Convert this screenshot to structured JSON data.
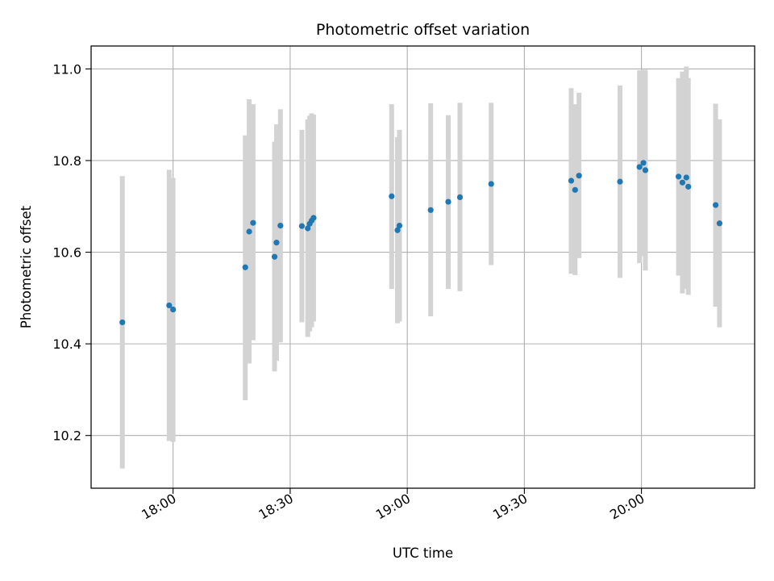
{
  "chart_data": {
    "type": "scatter",
    "title": "Photometric offset variation",
    "xlabel": "UTC time",
    "ylabel": "Photometric offset",
    "x_ticks": [
      "18:00",
      "18:30",
      "19:00",
      "19:30",
      "20:00"
    ],
    "y_ticks": [
      "10.2",
      "10.4",
      "10.6",
      "10.8",
      "11.0"
    ],
    "xlim": [
      "17:39",
      "20:29"
    ],
    "ylim": [
      10.085,
      11.05
    ],
    "grid": true,
    "colors": {
      "points": "#1f77b4",
      "error_bars": "#d3d3d3",
      "grid": "#b0b0b0",
      "axes": "#000000"
    },
    "points": [
      {
        "time": "17:47:00",
        "y": 10.447,
        "ylow": 10.128,
        "yhigh": 10.766
      },
      {
        "time": "17:59:00",
        "y": 10.484,
        "ylow": 10.188,
        "yhigh": 10.78
      },
      {
        "time": "18:00:00",
        "y": 10.475,
        "ylow": 10.186,
        "yhigh": 10.762
      },
      {
        "time": "18:18:30",
        "y": 10.567,
        "ylow": 10.277,
        "yhigh": 10.855
      },
      {
        "time": "18:19:30",
        "y": 10.645,
        "ylow": 10.357,
        "yhigh": 10.934
      },
      {
        "time": "18:20:30",
        "y": 10.664,
        "ylow": 10.408,
        "yhigh": 10.923
      },
      {
        "time": "18:26:00",
        "y": 10.59,
        "ylow": 10.34,
        "yhigh": 10.841
      },
      {
        "time": "18:26:30",
        "y": 10.621,
        "ylow": 10.363,
        "yhigh": 10.879
      },
      {
        "time": "18:27:30",
        "y": 10.658,
        "ylow": 10.403,
        "yhigh": 10.912
      },
      {
        "time": "18:33:00",
        "y": 10.657,
        "ylow": 10.447,
        "yhigh": 10.867
      },
      {
        "time": "18:34:30",
        "y": 10.652,
        "ylow": 10.415,
        "yhigh": 10.89
      },
      {
        "time": "18:35:00",
        "y": 10.662,
        "ylow": 10.427,
        "yhigh": 10.898
      },
      {
        "time": "18:35:30",
        "y": 10.669,
        "ylow": 10.436,
        "yhigh": 10.903
      },
      {
        "time": "18:36:00",
        "y": 10.675,
        "ylow": 10.449,
        "yhigh": 10.9
      },
      {
        "time": "18:56:00",
        "y": 10.722,
        "ylow": 10.52,
        "yhigh": 10.923
      },
      {
        "time": "18:57:30",
        "y": 10.648,
        "ylow": 10.445,
        "yhigh": 10.851
      },
      {
        "time": "18:58:00",
        "y": 10.658,
        "ylow": 10.449,
        "yhigh": 10.867
      },
      {
        "time": "19:06:00",
        "y": 10.692,
        "ylow": 10.46,
        "yhigh": 10.925
      },
      {
        "time": "19:10:30",
        "y": 10.71,
        "ylow": 10.52,
        "yhigh": 10.899
      },
      {
        "time": "19:13:30",
        "y": 10.72,
        "ylow": 10.515,
        "yhigh": 10.926
      },
      {
        "time": "19:21:30",
        "y": 10.749,
        "ylow": 10.572,
        "yhigh": 10.926
      },
      {
        "time": "19:42:00",
        "y": 10.756,
        "ylow": 10.553,
        "yhigh": 10.958
      },
      {
        "time": "19:43:00",
        "y": 10.736,
        "ylow": 10.55,
        "yhigh": 10.923
      },
      {
        "time": "19:44:00",
        "y": 10.767,
        "ylow": 10.587,
        "yhigh": 10.948
      },
      {
        "time": "19:54:30",
        "y": 10.754,
        "ylow": 10.544,
        "yhigh": 10.964
      },
      {
        "time": "19:59:30",
        "y": 10.786,
        "ylow": 10.576,
        "yhigh": 10.997
      },
      {
        "time": "20:00:30",
        "y": 10.795,
        "ylow": 10.592,
        "yhigh": 10.998
      },
      {
        "time": "20:01:00",
        "y": 10.779,
        "ylow": 10.56,
        "yhigh": 10.998
      },
      {
        "time": "20:09:30",
        "y": 10.765,
        "ylow": 10.549,
        "yhigh": 10.98
      },
      {
        "time": "20:10:30",
        "y": 10.752,
        "ylow": 10.51,
        "yhigh": 10.994
      },
      {
        "time": "20:11:30",
        "y": 10.763,
        "ylow": 10.52,
        "yhigh": 11.005
      },
      {
        "time": "20:12:00",
        "y": 10.743,
        "ylow": 10.507,
        "yhigh": 10.98
      },
      {
        "time": "20:19:00",
        "y": 10.703,
        "ylow": 10.481,
        "yhigh": 10.924
      },
      {
        "time": "20:20:00",
        "y": 10.663,
        "ylow": 10.436,
        "yhigh": 10.89
      }
    ]
  }
}
